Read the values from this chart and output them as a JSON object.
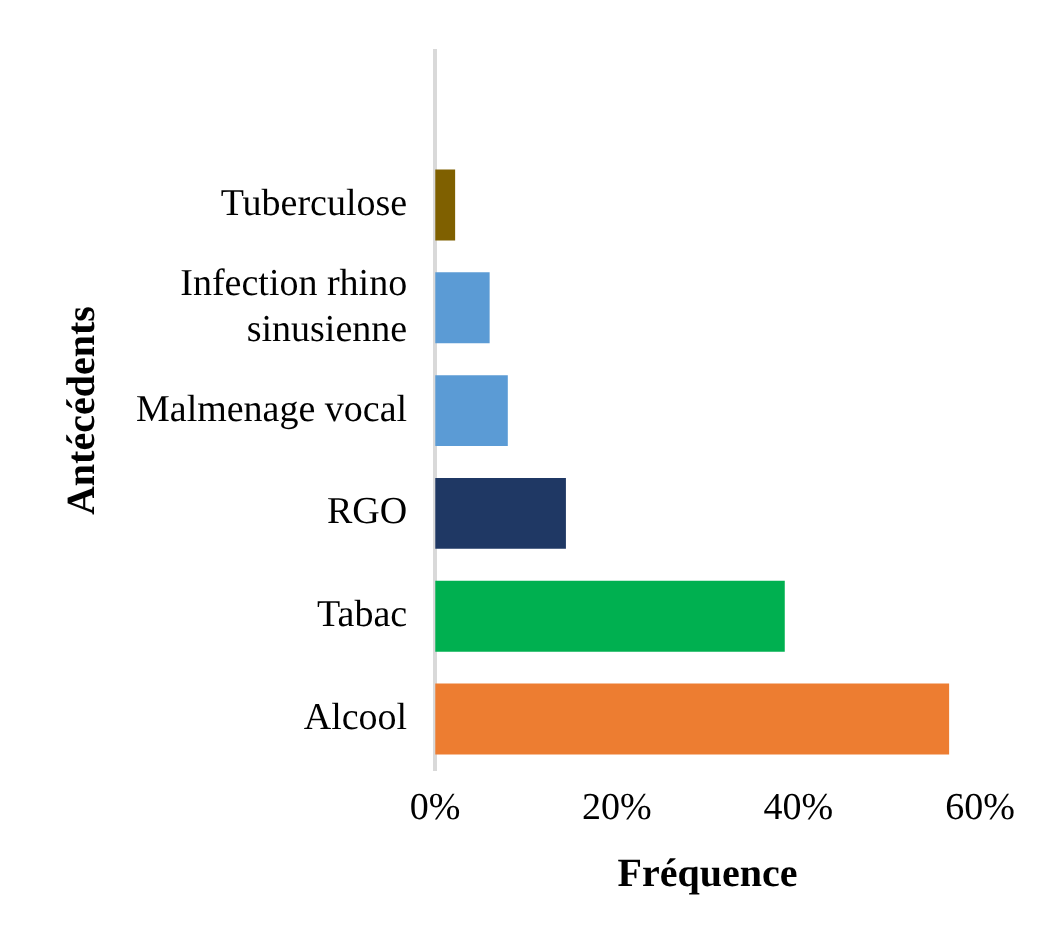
{
  "chart_data": {
    "type": "bar",
    "orientation": "horizontal",
    "xlabel": "Fréquence",
    "ylabel": "Antécédents",
    "categories": [
      null,
      "Tuberculose",
      "Infection rhino sinusienne",
      "Malmenage vocal",
      "RGO",
      "Tabac",
      "Alcool"
    ],
    "values": [
      null,
      2.2,
      6.0,
      8.0,
      14.4,
      38.5,
      56.6
    ],
    "colors": [
      "#5b9bd5",
      "#7f6000",
      "#5b9bd5",
      "#5b9bd5",
      "#1f3864",
      "#00b050",
      "#ed7d31"
    ],
    "xlim": [
      0,
      60
    ],
    "xticks": [
      {
        "value": 0,
        "label": "0%"
      },
      {
        "value": 20,
        "label": "20%"
      },
      {
        "value": 40,
        "label": "40%"
      },
      {
        "value": 60,
        "label": "60%"
      }
    ],
    "grid": false,
    "legend": false
  }
}
